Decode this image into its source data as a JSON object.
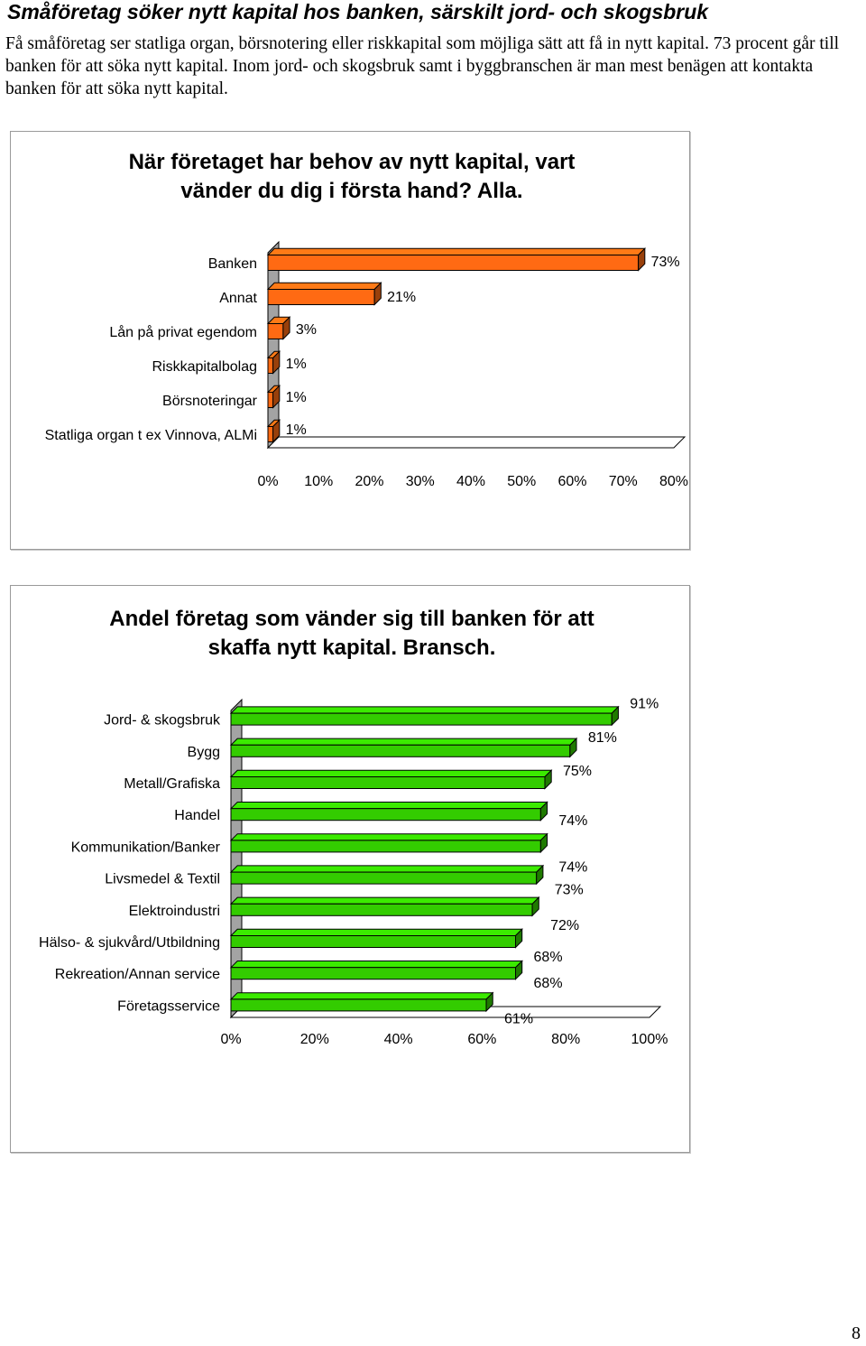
{
  "heading": "Småföretag söker nytt kapital hos banken, särskilt jord- och skogsbruk",
  "intro": "Få småföretag ser statliga organ, börsnotering eller riskkapital som möjliga sätt att få in nytt kapital. 73 procent går till banken för att söka nytt kapital. Inom jord- och skogsbruk samt i byggbranschen är man mest benägen att kontakta banken för att söka nytt kapital.",
  "page_number": "8",
  "colors": {
    "chart1_bar": "#ff6a13",
    "chart2_bar": "#33cc00",
    "bar_edge": "#000000",
    "wall": "#a3a3a3"
  },
  "chart_data": [
    {
      "type": "bar",
      "orientation": "horizontal",
      "title_lines": [
        "När företaget har behov av nytt kapital, vart",
        "vänder du dig i första hand? Alla."
      ],
      "categories": [
        "Banken",
        "Annat",
        "Lån på privat egendom",
        "Riskkapitalbolag",
        "Börsnoteringar",
        "Statliga organ t ex Vinnova, ALMi"
      ],
      "values": [
        73,
        21,
        3,
        1,
        1,
        1
      ],
      "value_labels": [
        "73%",
        "21%",
        "3%",
        "1%",
        "1%",
        "1%"
      ],
      "xlim": [
        0,
        80
      ],
      "ticks": [
        "0%",
        "10%",
        "20%",
        "30%",
        "40%",
        "50%",
        "60%",
        "70%",
        "80%"
      ],
      "grid": false
    },
    {
      "type": "bar",
      "orientation": "horizontal",
      "title_lines": [
        "Andel företag som vänder sig till banken för att",
        "skaffa nytt kapital. Bransch."
      ],
      "categories": [
        "Jord- & skogsbruk",
        "Bygg",
        "Metall/Grafiska",
        "Handel",
        "Kommunikation/Banker",
        "Livsmedel & Textil",
        "Elektroindustri",
        "Hälso- & sjukvård/Utbildning",
        "Rekreation/Annan service",
        "Företagsservice"
      ],
      "values": [
        91,
        81,
        75,
        74,
        74,
        73,
        72,
        68,
        68,
        61
      ],
      "value_labels": [
        "91%",
        "81%",
        "75%",
        "74%",
        "74%",
        "73%",
        "72%",
        "68%",
        "68%",
        "61%"
      ],
      "xlim": [
        0,
        100
      ],
      "ticks": [
        "0%",
        "20%",
        "40%",
        "60%",
        "80%",
        "100%"
      ],
      "grid": false
    }
  ]
}
